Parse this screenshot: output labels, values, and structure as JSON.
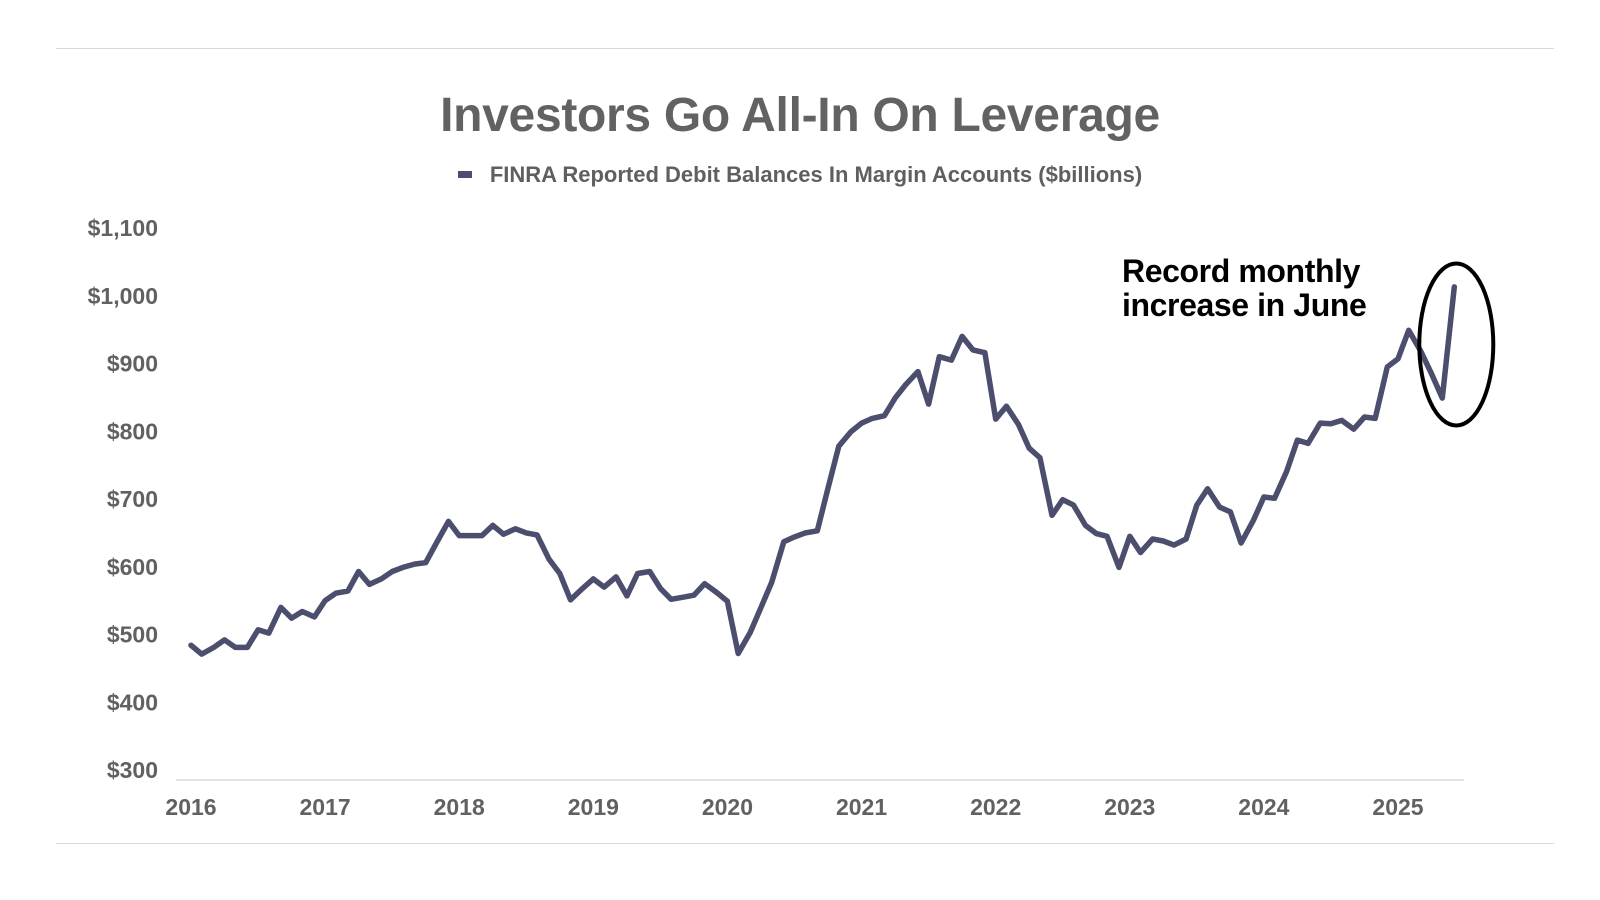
{
  "chart_data": {
    "type": "line",
    "title": "Investors Go All-In On Leverage",
    "xlabel": "",
    "ylabel": "",
    "ylim": [
      300,
      1100
    ],
    "y_ticks": [
      300,
      400,
      500,
      600,
      700,
      800,
      900,
      1000,
      1100
    ],
    "y_tick_labels": [
      "$300",
      "$400",
      "$500",
      "$600",
      "$700",
      "$800",
      "$900",
      "$1,000",
      "$1,100"
    ],
    "x_ticks": [
      2016,
      2017,
      2018,
      2019,
      2020,
      2021,
      2022,
      2023,
      2024,
      2025
    ],
    "x_tick_labels": [
      "2016",
      "2017",
      "2018",
      "2019",
      "2020",
      "2021",
      "2022",
      "2023",
      "2024",
      "2025"
    ],
    "xlim": [
      2016,
      2025.6
    ],
    "grid": false,
    "legend": "top-center",
    "series": [
      {
        "name": "FINRA Reported Debit Balances In Margin Accounts ($billions)",
        "color": "#4b4e6d",
        "x": [
          2016.0,
          2016.08,
          2016.17,
          2016.25,
          2016.33,
          2016.42,
          2016.5,
          2016.58,
          2016.67,
          2016.75,
          2016.83,
          2016.92,
          2017.0,
          2017.08,
          2017.17,
          2017.25,
          2017.33,
          2017.42,
          2017.5,
          2017.58,
          2017.67,
          2017.75,
          2017.83,
          2017.92,
          2018.0,
          2018.08,
          2018.17,
          2018.25,
          2018.33,
          2018.42,
          2018.5,
          2018.58,
          2018.67,
          2018.75,
          2018.83,
          2018.92,
          2019.0,
          2019.08,
          2019.17,
          2019.25,
          2019.33,
          2019.42,
          2019.5,
          2019.58,
          2019.67,
          2019.75,
          2019.83,
          2019.92,
          2020.0,
          2020.08,
          2020.17,
          2020.25,
          2020.33,
          2020.42,
          2020.5,
          2020.58,
          2020.67,
          2020.75,
          2020.83,
          2020.92,
          2021.0,
          2021.08,
          2021.17,
          2021.25,
          2021.33,
          2021.42,
          2021.5,
          2021.58,
          2021.67,
          2021.75,
          2021.83,
          2021.92,
          2022.0,
          2022.08,
          2022.17,
          2022.25,
          2022.33,
          2022.42,
          2022.5,
          2022.58,
          2022.67,
          2022.75,
          2022.83,
          2022.92,
          2023.0,
          2023.08,
          2023.17,
          2023.25,
          2023.33,
          2023.42,
          2023.5,
          2023.58,
          2023.67,
          2023.75,
          2023.83,
          2023.92,
          2024.0,
          2024.08,
          2024.17,
          2024.25,
          2024.33,
          2024.42,
          2024.5,
          2024.58,
          2024.67,
          2024.75,
          2024.83,
          2024.92,
          2025.0,
          2025.08,
          2025.17,
          2025.25,
          2025.33,
          2025.42
        ],
        "y": [
          484,
          471,
          481,
          492,
          481,
          481,
          507,
          502,
          540,
          524,
          534,
          526,
          550,
          561,
          564,
          593,
          574,
          582,
          593,
          599,
          604,
          606,
          635,
          667,
          646,
          646,
          646,
          661,
          648,
          656,
          650,
          647,
          611,
          590,
          551,
          568,
          582,
          570,
          585,
          557,
          590,
          593,
          568,
          552,
          555,
          558,
          575,
          562,
          549,
          472,
          503,
          540,
          577,
          637,
          644,
          650,
          653,
          716,
          778,
          799,
          812,
          819,
          823,
          849,
          869,
          888,
          840,
          910,
          905,
          940,
          920,
          916,
          818,
          837,
          810,
          775,
          761,
          676,
          699,
          691,
          661,
          649,
          645,
          599,
          645,
          621,
          641,
          638,
          632,
          641,
          691,
          715,
          688,
          681,
          635,
          668,
          703,
          701,
          741,
          787,
          782,
          812,
          811,
          816,
          803,
          821,
          819,
          895,
          907,
          949,
          918,
          885,
          849,
          1013
        ]
      }
    ],
    "annotations": [
      {
        "text_lines": [
          "Record monthly",
          "increase in June"
        ],
        "highlight": "ellipse-around-last-points"
      }
    ]
  }
}
